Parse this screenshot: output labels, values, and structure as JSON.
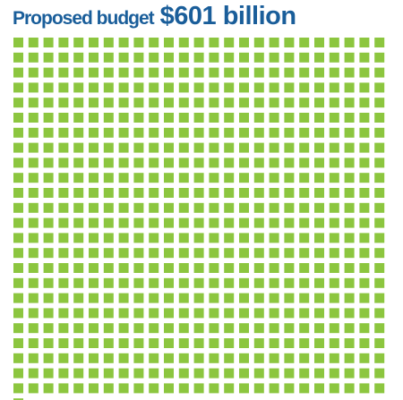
{
  "header": {
    "label": "Proposed budget",
    "value": "$601 billion"
  },
  "chart_data": {
    "type": "waffle",
    "total_squares": 601,
    "columns": 25,
    "full_rows": 24,
    "remainder_squares": 1,
    "unit": "1 square = $1 billion"
  },
  "colors": {
    "square": "#8cc63f",
    "title": "#1a5e9a"
  }
}
